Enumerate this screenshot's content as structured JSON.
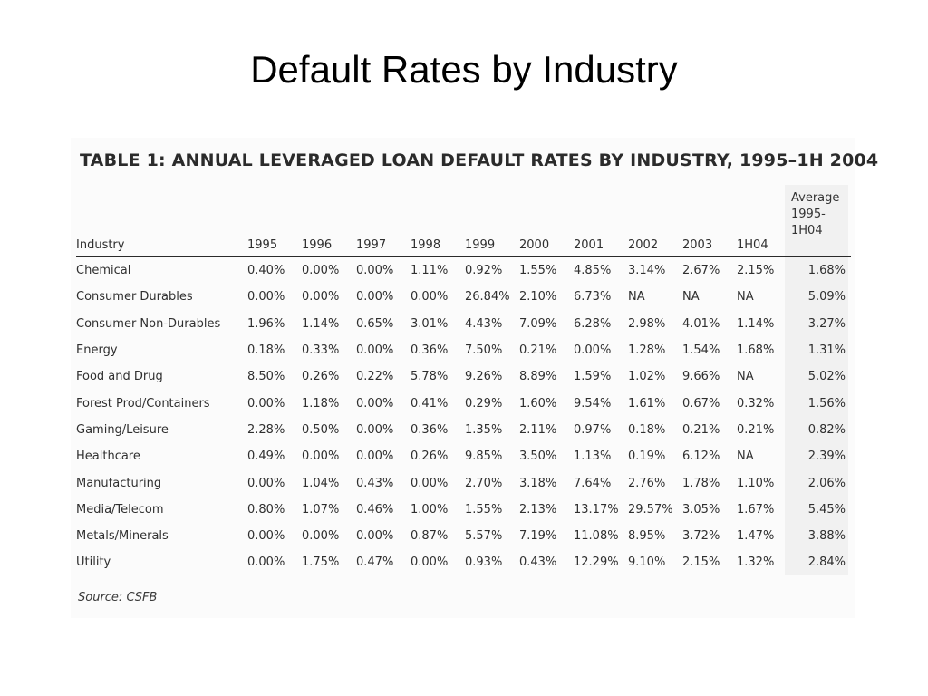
{
  "slide": {
    "title": "Default Rates by Industry"
  },
  "table": {
    "heading": "TABLE 1: ANNUAL LEVERAGED LOAN DEFAULT RATES BY INDUSTRY, 1995–1H 2004",
    "avg_header": [
      "Average",
      "1995-",
      "1H04"
    ],
    "columns": [
      "Industry",
      "1995",
      "1996",
      "1997",
      "1998",
      "1999",
      "2000",
      "2001",
      "2002",
      "2003",
      "1H04"
    ],
    "rows": [
      {
        "industry": "Chemical",
        "values": [
          "0.40%",
          "0.00%",
          "0.00%",
          "1.11%",
          "0.92%",
          "1.55%",
          "4.85%",
          "3.14%",
          "2.67%",
          "2.15%"
        ],
        "average": "1.68%"
      },
      {
        "industry": "Consumer Durables",
        "values": [
          "0.00%",
          "0.00%",
          "0.00%",
          "0.00%",
          "26.84%",
          "2.10%",
          "6.73%",
          "NA",
          "NA",
          "NA"
        ],
        "average": "5.09%"
      },
      {
        "industry": "Consumer Non-Durables",
        "values": [
          "1.96%",
          "1.14%",
          "0.65%",
          "3.01%",
          "4.43%",
          "7.09%",
          "6.28%",
          "2.98%",
          "4.01%",
          "1.14%"
        ],
        "average": "3.27%"
      },
      {
        "industry": "Energy",
        "values": [
          "0.18%",
          "0.33%",
          "0.00%",
          "0.36%",
          "7.50%",
          "0.21%",
          "0.00%",
          "1.28%",
          "1.54%",
          "1.68%"
        ],
        "average": "1.31%"
      },
      {
        "industry": "Food and Drug",
        "values": [
          "8.50%",
          "0.26%",
          "0.22%",
          "5.78%",
          "9.26%",
          "8.89%",
          "1.59%",
          "1.02%",
          "9.66%",
          "NA"
        ],
        "average": "5.02%"
      },
      {
        "industry": "Forest Prod/Containers",
        "values": [
          "0.00%",
          "1.18%",
          "0.00%",
          "0.41%",
          "0.29%",
          "1.60%",
          "9.54%",
          "1.61%",
          "0.67%",
          "0.32%"
        ],
        "average": "1.56%"
      },
      {
        "industry": "Gaming/Leisure",
        "values": [
          "2.28%",
          "0.50%",
          "0.00%",
          "0.36%",
          "1.35%",
          "2.11%",
          "0.97%",
          "0.18%",
          "0.21%",
          "0.21%"
        ],
        "average": "0.82%"
      },
      {
        "industry": "Healthcare",
        "values": [
          "0.49%",
          "0.00%",
          "0.00%",
          "0.26%",
          "9.85%",
          "3.50%",
          "1.13%",
          "0.19%",
          "6.12%",
          "NA"
        ],
        "average": "2.39%"
      },
      {
        "industry": "Manufacturing",
        "values": [
          "0.00%",
          "1.04%",
          "0.43%",
          "0.00%",
          "2.70%",
          "3.18%",
          "7.64%",
          "2.76%",
          "1.78%",
          "1.10%"
        ],
        "average": "2.06%"
      },
      {
        "industry": "Media/Telecom",
        "values": [
          "0.80%",
          "1.07%",
          "0.46%",
          "1.00%",
          "1.55%",
          "2.13%",
          "13.17%",
          "29.57%",
          "3.05%",
          "1.67%"
        ],
        "average": "5.45%"
      },
      {
        "industry": "Metals/Minerals",
        "values": [
          "0.00%",
          "0.00%",
          "0.00%",
          "0.87%",
          "5.57%",
          "7.19%",
          "11.08%",
          "8.95%",
          "3.72%",
          "1.47%"
        ],
        "average": "3.88%"
      },
      {
        "industry": "Utility",
        "values": [
          "0.00%",
          "1.75%",
          "0.47%",
          "0.00%",
          "0.93%",
          "0.43%",
          "12.29%",
          "9.10%",
          "2.15%",
          "1.32%"
        ],
        "average": "2.84%"
      }
    ],
    "source": "Source: CSFB"
  }
}
